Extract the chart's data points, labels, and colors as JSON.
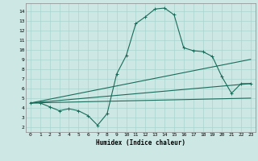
{
  "bg_color": "#cde8e4",
  "grid_color": "#a8d5ce",
  "line_color": "#1a6b5a",
  "xlabel": "Humidex (Indice chaleur)",
  "xlim": [
    -0.5,
    23.5
  ],
  "ylim": [
    1.5,
    14.8
  ],
  "xticks": [
    0,
    1,
    2,
    3,
    4,
    5,
    6,
    7,
    8,
    9,
    10,
    11,
    12,
    13,
    14,
    15,
    16,
    17,
    18,
    19,
    20,
    21,
    22,
    23
  ],
  "yticks": [
    2,
    3,
    4,
    5,
    6,
    7,
    8,
    9,
    10,
    11,
    12,
    13,
    14
  ],
  "line1_x": [
    0,
    1,
    2,
    3,
    4,
    5,
    6,
    7,
    8,
    9,
    10,
    11,
    12,
    13,
    14,
    15,
    16,
    17,
    18,
    19,
    20,
    21,
    22,
    23
  ],
  "line1_y": [
    4.5,
    4.5,
    4.1,
    3.7,
    3.9,
    3.7,
    3.2,
    2.2,
    3.4,
    7.5,
    9.4,
    12.7,
    13.4,
    14.2,
    14.3,
    13.6,
    10.2,
    9.9,
    9.8,
    9.3,
    7.2,
    5.5,
    6.5,
    6.5
  ],
  "line2_x": [
    0,
    23
  ],
  "line2_y": [
    4.5,
    6.5
  ],
  "line3_x": [
    0,
    23
  ],
  "line3_y": [
    4.5,
    9.0
  ],
  "line4_x": [
    0,
    23
  ],
  "line4_y": [
    4.5,
    5.0
  ]
}
